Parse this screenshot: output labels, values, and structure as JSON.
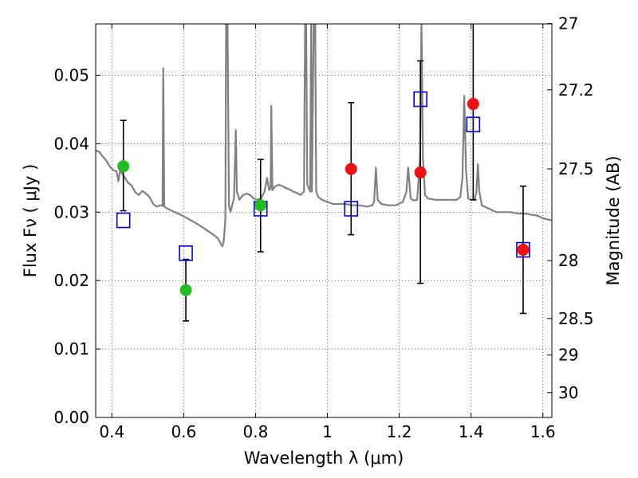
{
  "chart_data": {
    "type": "scatter",
    "title": "",
    "xlabel": "Wavelength  λ (μm)",
    "ylabel": "Flux  Fν  ( μJy )",
    "y2label": "Magnitude (AB)",
    "xlim": [
      0.355,
      1.625
    ],
    "ylim": [
      0.0,
      0.0575
    ],
    "grid": true,
    "x_ticks": [
      0.4,
      0.6,
      0.8,
      1.0,
      1.2,
      1.4,
      1.6
    ],
    "x_tick_labels": [
      "0.4",
      "0.6",
      "0.8",
      "1",
      "1.2",
      "1.4",
      "1.6"
    ],
    "y_ticks": [
      0.0,
      0.01,
      0.02,
      0.03,
      0.04,
      0.05
    ],
    "y_tick_labels": [
      "0.00",
      "0.01",
      "0.02",
      "0.03",
      "0.04",
      "0.05"
    ],
    "y2_ticks": [
      27,
      27.2,
      27.5,
      28,
      28.5,
      29,
      30
    ],
    "y2_tick_labels": [
      "27",
      "27.2",
      "27.5",
      "28",
      "28.5",
      "29",
      "30"
    ],
    "series": [
      {
        "marker": "square-open",
        "color": "#0000cc",
        "points": [
          {
            "x": 0.432,
            "y": 0.0288
          },
          {
            "x": 0.606,
            "y": 0.024
          },
          {
            "x": 0.814,
            "y": 0.0305
          },
          {
            "x": 1.066,
            "y": 0.0305
          },
          {
            "x": 1.259,
            "y": 0.0465
          },
          {
            "x": 1.406,
            "y": 0.0428
          },
          {
            "x": 1.545,
            "y": 0.0245
          }
        ]
      },
      {
        "marker": "circle",
        "color": "#22bb22",
        "points": [
          {
            "x": 0.432,
            "y": 0.0367,
            "yerr_low": 0.0065,
            "yerr_high": 0.0067
          },
          {
            "x": 0.606,
            "y": 0.0186,
            "yerr_low": 0.0045,
            "yerr_high": 0.0045
          },
          {
            "x": 0.814,
            "y": 0.031,
            "yerr_low": 0.0068,
            "yerr_high": 0.0067
          }
        ]
      },
      {
        "marker": "circle",
        "color": "#ee1111",
        "points": [
          {
            "x": 1.066,
            "y": 0.0363,
            "yerr_low": 0.0096,
            "yerr_high": 0.0097
          },
          {
            "x": 1.259,
            "y": 0.0358,
            "yerr_low": 0.0162,
            "yerr_high": 0.0163
          },
          {
            "x": 1.406,
            "y": 0.0458,
            "yerr_low": 0.014,
            "yerr_high": 0.014
          },
          {
            "x": 1.545,
            "y": 0.0245,
            "yerr_low": 0.0093,
            "yerr_high": 0.0093
          }
        ]
      }
    ],
    "model_spectrum": {
      "color": "#808080",
      "points": [
        [
          0.355,
          0.039
        ],
        [
          0.365,
          0.0388
        ],
        [
          0.375,
          0.0381
        ],
        [
          0.385,
          0.0375
        ],
        [
          0.395,
          0.0366
        ],
        [
          0.405,
          0.0361
        ],
        [
          0.413,
          0.036
        ],
        [
          0.418,
          0.0345
        ],
        [
          0.423,
          0.0361
        ],
        [
          0.433,
          0.0353
        ],
        [
          0.445,
          0.0343
        ],
        [
          0.455,
          0.0339
        ],
        [
          0.465,
          0.0329
        ],
        [
          0.475,
          0.0325
        ],
        [
          0.485,
          0.0331
        ],
        [
          0.495,
          0.0327
        ],
        [
          0.505,
          0.0322
        ],
        [
          0.515,
          0.0312
        ],
        [
          0.525,
          0.0308
        ],
        [
          0.535,
          0.031
        ],
        [
          0.541,
          0.0309
        ],
        [
          0.543,
          0.051
        ],
        [
          0.546,
          0.0308
        ],
        [
          0.555,
          0.0305
        ],
        [
          0.575,
          0.03
        ],
        [
          0.6,
          0.0294
        ],
        [
          0.62,
          0.0288
        ],
        [
          0.64,
          0.0282
        ],
        [
          0.66,
          0.0275
        ],
        [
          0.68,
          0.0268
        ],
        [
          0.695,
          0.0262
        ],
        [
          0.705,
          0.0252
        ],
        [
          0.708,
          0.025
        ],
        [
          0.712,
          0.026
        ],
        [
          0.716,
          0.029
        ],
        [
          0.718,
          0.058
        ],
        [
          0.722,
          0.058
        ],
        [
          0.726,
          0.031
        ],
        [
          0.73,
          0.03
        ],
        [
          0.74,
          0.032
        ],
        [
          0.745,
          0.042
        ],
        [
          0.748,
          0.033
        ],
        [
          0.755,
          0.0318
        ],
        [
          0.765,
          0.0325
        ],
        [
          0.775,
          0.0327
        ],
        [
          0.785,
          0.0325
        ],
        [
          0.795,
          0.032
        ],
        [
          0.805,
          0.0318
        ],
        [
          0.815,
          0.032
        ],
        [
          0.825,
          0.033
        ],
        [
          0.832,
          0.035
        ],
        [
          0.838,
          0.0332
        ],
        [
          0.842,
          0.0335
        ],
        [
          0.844,
          0.0455
        ],
        [
          0.847,
          0.0332
        ],
        [
          0.855,
          0.0338
        ],
        [
          0.865,
          0.034
        ],
        [
          0.875,
          0.0338
        ],
        [
          0.885,
          0.0335
        ],
        [
          0.895,
          0.0333
        ],
        [
          0.905,
          0.033
        ],
        [
          0.915,
          0.0328
        ],
        [
          0.925,
          0.0325
        ],
        [
          0.935,
          0.033
        ],
        [
          0.938,
          0.058
        ],
        [
          0.941,
          0.058
        ],
        [
          0.944,
          0.034
        ],
        [
          0.952,
          0.033
        ],
        [
          0.955,
          0.058
        ],
        [
          0.957,
          0.033
        ],
        [
          0.962,
          0.058
        ],
        [
          0.966,
          0.058
        ],
        [
          0.969,
          0.033
        ],
        [
          0.975,
          0.0322
        ],
        [
          0.985,
          0.0318
        ],
        [
          1.0,
          0.0315
        ],
        [
          1.015,
          0.0312
        ],
        [
          1.03,
          0.0312
        ],
        [
          1.05,
          0.0312
        ],
        [
          1.07,
          0.031
        ],
        [
          1.09,
          0.031
        ],
        [
          1.11,
          0.0308
        ],
        [
          1.125,
          0.031
        ],
        [
          1.13,
          0.0315
        ],
        [
          1.135,
          0.0365
        ],
        [
          1.14,
          0.0318
        ],
        [
          1.15,
          0.0312
        ],
        [
          1.17,
          0.031
        ],
        [
          1.19,
          0.031
        ],
        [
          1.21,
          0.0315
        ],
        [
          1.22,
          0.033
        ],
        [
          1.225,
          0.0365
        ],
        [
          1.232,
          0.032
        ],
        [
          1.24,
          0.0317
        ],
        [
          1.25,
          0.0318
        ],
        [
          1.258,
          0.038
        ],
        [
          1.262,
          0.058
        ],
        [
          1.266,
          0.038
        ],
        [
          1.272,
          0.0325
        ],
        [
          1.28,
          0.032
        ],
        [
          1.3,
          0.0318
        ],
        [
          1.32,
          0.0318
        ],
        [
          1.34,
          0.0318
        ],
        [
          1.36,
          0.0318
        ],
        [
          1.37,
          0.0322
        ],
        [
          1.376,
          0.035
        ],
        [
          1.381,
          0.047
        ],
        [
          1.386,
          0.036
        ],
        [
          1.392,
          0.032
        ],
        [
          1.4,
          0.0318
        ],
        [
          1.41,
          0.0318
        ],
        [
          1.415,
          0.033
        ],
        [
          1.419,
          0.037
        ],
        [
          1.423,
          0.033
        ],
        [
          1.43,
          0.031
        ],
        [
          1.45,
          0.0305
        ],
        [
          1.47,
          0.03
        ],
        [
          1.49,
          0.03
        ],
        [
          1.51,
          0.03
        ],
        [
          1.53,
          0.0298
        ],
        [
          1.55,
          0.0298
        ],
        [
          1.57,
          0.0296
        ],
        [
          1.585,
          0.0295
        ],
        [
          1.6,
          0.0291
        ],
        [
          1.615,
          0.0289
        ],
        [
          1.625,
          0.0288
        ]
      ]
    }
  }
}
